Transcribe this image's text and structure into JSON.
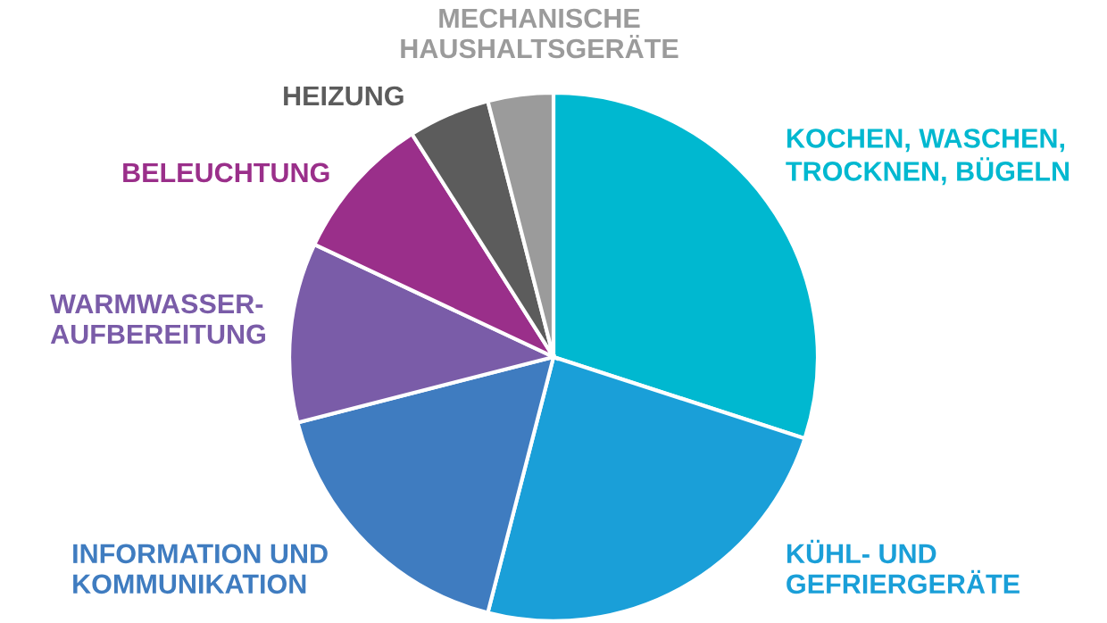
{
  "chart_data": {
    "type": "pie",
    "categories": [
      "KOCHEN, WASCHEN,\nTROCKNEN, BÜGELN",
      "KÜHL- UND\nGEFRIERGERÄTE",
      "INFORMATION UND\nKOMMUNIKATION",
      "WARMWASSER-\nAUFBEREITUNG",
      "BELEUCHTUNG",
      "HEIZUNG",
      "MECHANISCHE\nHAUSHALTSGERÄTE"
    ],
    "values": [
      30,
      24,
      17,
      11,
      9,
      5,
      4
    ],
    "colors": [
      "#00b8d0",
      "#1a9fd8",
      "#3f7cc0",
      "#7a5ca8",
      "#9a2f8a",
      "#5c5c5c",
      "#9b9b9b"
    ],
    "legend": false
  }
}
